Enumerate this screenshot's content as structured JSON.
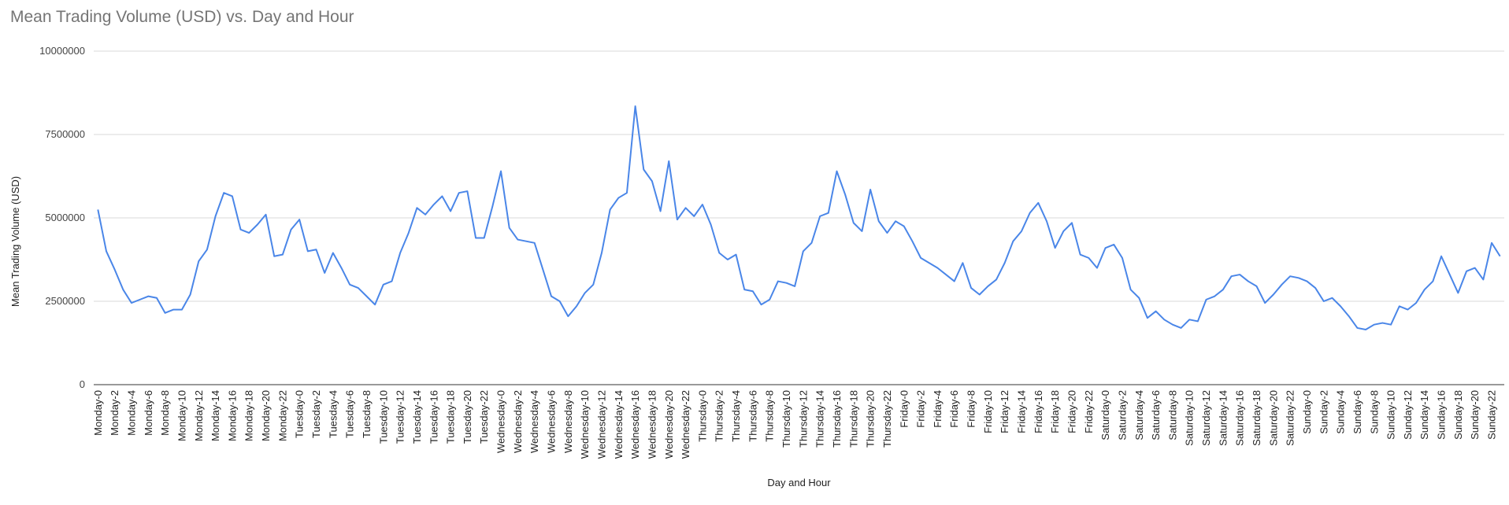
{
  "chart_data": {
    "type": "line",
    "title": "Mean Trading Volume (USD) vs. Day and Hour",
    "xlabel": "Day and Hour",
    "ylabel": "Mean Trading Volume (USD)",
    "ylim": [
      0,
      10000000
    ],
    "yticks": [
      0,
      2500000,
      5000000,
      7500000,
      10000000
    ],
    "ytick_labels": [
      "0",
      "2500000",
      "5000000",
      "7500000",
      "10000000"
    ],
    "grid": true,
    "line_color": "#4a86e8",
    "categories": [
      "Monday-0",
      "Monday-1",
      "Monday-2",
      "Monday-3",
      "Monday-4",
      "Monday-5",
      "Monday-6",
      "Monday-7",
      "Monday-8",
      "Monday-9",
      "Monday-10",
      "Monday-11",
      "Monday-12",
      "Monday-13",
      "Monday-14",
      "Monday-15",
      "Monday-16",
      "Monday-17",
      "Monday-18",
      "Monday-19",
      "Monday-20",
      "Monday-21",
      "Monday-22",
      "Monday-23",
      "Tuesday-0",
      "Tuesday-1",
      "Tuesday-2",
      "Tuesday-3",
      "Tuesday-4",
      "Tuesday-5",
      "Tuesday-6",
      "Tuesday-7",
      "Tuesday-8",
      "Tuesday-9",
      "Tuesday-10",
      "Tuesday-11",
      "Tuesday-12",
      "Tuesday-13",
      "Tuesday-14",
      "Tuesday-15",
      "Tuesday-16",
      "Tuesday-17",
      "Tuesday-18",
      "Tuesday-19",
      "Tuesday-20",
      "Tuesday-21",
      "Tuesday-22",
      "Tuesday-23",
      "Wednesday-0",
      "Wednesday-1",
      "Wednesday-2",
      "Wednesday-3",
      "Wednesday-4",
      "Wednesday-5",
      "Wednesday-6",
      "Wednesday-7",
      "Wednesday-8",
      "Wednesday-9",
      "Wednesday-10",
      "Wednesday-11",
      "Wednesday-12",
      "Wednesday-13",
      "Wednesday-14",
      "Wednesday-15",
      "Wednesday-16",
      "Wednesday-17",
      "Wednesday-18",
      "Wednesday-19",
      "Wednesday-20",
      "Wednesday-21",
      "Wednesday-22",
      "Wednesday-23",
      "Thursday-0",
      "Thursday-1",
      "Thursday-2",
      "Thursday-3",
      "Thursday-4",
      "Thursday-5",
      "Thursday-6",
      "Thursday-7",
      "Thursday-8",
      "Thursday-9",
      "Thursday-10",
      "Thursday-11",
      "Thursday-12",
      "Thursday-13",
      "Thursday-14",
      "Thursday-15",
      "Thursday-16",
      "Thursday-17",
      "Thursday-18",
      "Thursday-19",
      "Thursday-20",
      "Thursday-21",
      "Thursday-22",
      "Thursday-23",
      "Friday-0",
      "Friday-1",
      "Friday-2",
      "Friday-3",
      "Friday-4",
      "Friday-5",
      "Friday-6",
      "Friday-7",
      "Friday-8",
      "Friday-9",
      "Friday-10",
      "Friday-11",
      "Friday-12",
      "Friday-13",
      "Friday-14",
      "Friday-15",
      "Friday-16",
      "Friday-17",
      "Friday-18",
      "Friday-19",
      "Friday-20",
      "Friday-21",
      "Friday-22",
      "Friday-23",
      "Saturday-0",
      "Saturday-1",
      "Saturday-2",
      "Saturday-3",
      "Saturday-4",
      "Saturday-5",
      "Saturday-6",
      "Saturday-7",
      "Saturday-8",
      "Saturday-9",
      "Saturday-10",
      "Saturday-11",
      "Saturday-12",
      "Saturday-13",
      "Saturday-14",
      "Saturday-15",
      "Saturday-16",
      "Saturday-17",
      "Saturday-18",
      "Saturday-19",
      "Saturday-20",
      "Saturday-21",
      "Saturday-22",
      "Saturday-23",
      "Sunday-0",
      "Sunday-1",
      "Sunday-2",
      "Sunday-3",
      "Sunday-4",
      "Sunday-5",
      "Sunday-6",
      "Sunday-7",
      "Sunday-8",
      "Sunday-9",
      "Sunday-10",
      "Sunday-11",
      "Sunday-12",
      "Sunday-13",
      "Sunday-14",
      "Sunday-15",
      "Sunday-16",
      "Sunday-17",
      "Sunday-18",
      "Sunday-19",
      "Sunday-20",
      "Sunday-21",
      "Sunday-22",
      "Sunday-23"
    ],
    "tick_label_every": 2,
    "values": [
      5250000,
      4000000,
      3450000,
      2850000,
      2450000,
      2550000,
      2650000,
      2600000,
      2150000,
      2250000,
      2250000,
      2700000,
      3700000,
      4050000,
      5050000,
      5750000,
      5650000,
      4650000,
      4550000,
      4800000,
      5100000,
      3850000,
      3900000,
      4650000,
      4950000,
      4000000,
      4050000,
      3350000,
      3950000,
      3500000,
      3000000,
      2900000,
      2650000,
      2400000,
      3000000,
      3100000,
      3950000,
      4550000,
      5300000,
      5100000,
      5400000,
      5650000,
      5200000,
      5750000,
      5800000,
      4400000,
      4400000,
      5350000,
      6400000,
      4700000,
      4350000,
      4300000,
      4250000,
      3450000,
      2650000,
      2500000,
      2050000,
      2350000,
      2750000,
      3000000,
      3950000,
      5250000,
      5600000,
      5750000,
      8350000,
      6450000,
      6100000,
      5200000,
      6700000,
      4950000,
      5300000,
      5050000,
      5400000,
      4800000,
      3950000,
      3750000,
      3900000,
      2850000,
      2800000,
      2400000,
      2550000,
      3100000,
      3050000,
      2950000,
      4000000,
      4250000,
      5050000,
      5150000,
      6400000,
      5700000,
      4850000,
      4600000,
      5850000,
      4900000,
      4550000,
      4900000,
      4750000,
      4300000,
      3800000,
      3650000,
      3500000,
      3300000,
      3100000,
      3650000,
      2900000,
      2700000,
      2950000,
      3150000,
      3650000,
      4300000,
      4600000,
      5150000,
      5450000,
      4900000,
      4100000,
      4600000,
      4850000,
      3900000,
      3800000,
      3500000,
      4100000,
      4200000,
      3800000,
      2850000,
      2600000,
      2000000,
      2200000,
      1950000,
      1800000,
      1700000,
      1950000,
      1900000,
      2550000,
      2650000,
      2850000,
      3250000,
      3300000,
      3100000,
      2950000,
      2450000,
      2700000,
      3000000,
      3250000,
      3200000,
      3100000,
      2900000,
      2500000,
      2600000,
      2350000,
      2050000,
      1700000,
      1650000,
      1800000,
      1850000,
      1800000,
      2350000,
      2250000,
      2450000,
      2850000,
      3100000,
      3850000,
      3300000,
      2750000,
      3400000,
      3500000,
      3150000,
      4250000,
      3850000
    ]
  }
}
